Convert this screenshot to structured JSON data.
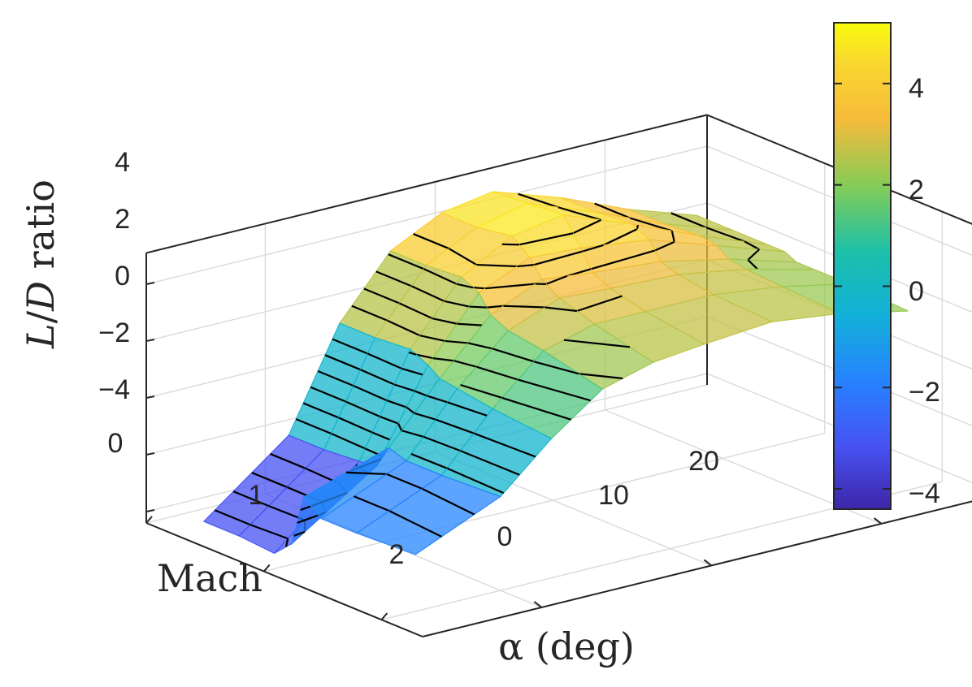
{
  "chart_data": {
    "type": "surface3d",
    "title": "",
    "xlabel": "Mach",
    "ylabel": "α (deg)",
    "zlabel_parts": [
      "L",
      "/",
      "D",
      " ratio"
    ],
    "x_ticks": [
      "0",
      "1",
      "2"
    ],
    "y_ticks": [
      "0",
      "10",
      "20"
    ],
    "z_ticks": [
      "4",
      "2",
      "0",
      "−2",
      "−4"
    ],
    "colorbar_ticks": [
      "4",
      "2",
      "0",
      "−2",
      "−4"
    ],
    "colorbar_range": [
      -4.4,
      5.2
    ],
    "colormap": "parula",
    "surface_alpha": 0.75,
    "contour_lines": "black",
    "grid": true,
    "mach": [
      0.2,
      0.5,
      0.8,
      0.95,
      1.05,
      1.2,
      1.5,
      2.0
    ],
    "alpha_deg": [
      -5,
      0,
      3,
      6,
      9,
      12,
      16,
      20,
      24
    ],
    "ld_ratio": [
      [
        -4.3,
        -2.0,
        1.5,
        3.6,
        4.5,
        4.8,
        4.0,
        3.0,
        2.2
      ],
      [
        -4.3,
        -2.0,
        1.5,
        3.6,
        4.5,
        4.9,
        4.0,
        3.0,
        2.2
      ],
      [
        -4.4,
        -1.9,
        1.6,
        3.7,
        4.7,
        5.0,
        4.1,
        3.1,
        2.2
      ],
      [
        -3.8,
        -1.8,
        1.3,
        3.4,
        4.2,
        4.1,
        3.8,
        3.0,
        2.2
      ],
      [
        -2.0,
        -1.0,
        1.0,
        2.8,
        3.6,
        3.4,
        3.2,
        2.7,
        2.0
      ],
      [
        -2.5,
        -1.2,
        0.9,
        2.5,
        3.2,
        3.1,
        3.0,
        2.6,
        2.0
      ],
      [
        -2.5,
        -1.2,
        0.7,
        2.3,
        2.8,
        2.8,
        2.8,
        2.5,
        2.0
      ],
      [
        -2.4,
        -1.1,
        0.5,
        1.8,
        2.3,
        2.5,
        2.7,
        2.4,
        1.9
      ]
    ]
  },
  "colors": {
    "axis": "#262626",
    "grid": "#dcdcdc"
  }
}
